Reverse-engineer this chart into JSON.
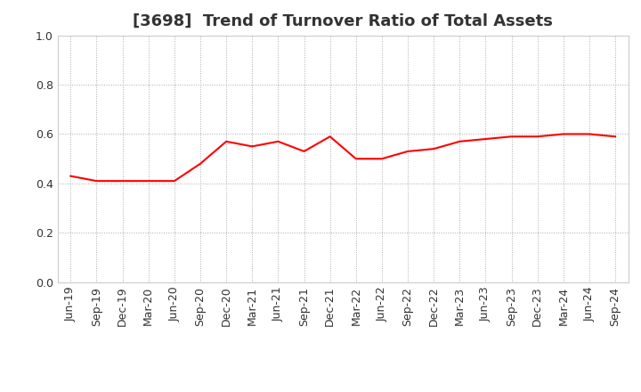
{
  "title": "[3698]  Trend of Turnover Ratio of Total Assets",
  "x_labels": [
    "Jun-19",
    "Sep-19",
    "Dec-19",
    "Mar-20",
    "Jun-20",
    "Sep-20",
    "Dec-20",
    "Mar-21",
    "Jun-21",
    "Sep-21",
    "Dec-21",
    "Mar-22",
    "Jun-22",
    "Sep-22",
    "Dec-22",
    "Mar-23",
    "Jun-23",
    "Sep-23",
    "Dec-23",
    "Mar-24",
    "Jun-24",
    "Sep-24"
  ],
  "values": [
    0.43,
    0.41,
    0.41,
    0.41,
    0.41,
    0.48,
    0.57,
    0.55,
    0.57,
    0.53,
    0.59,
    0.5,
    0.5,
    0.53,
    0.54,
    0.57,
    0.58,
    0.59,
    0.59,
    0.6,
    0.6,
    0.59
  ],
  "line_color": "#ff0000",
  "line_width": 1.5,
  "ylim": [
    0.0,
    1.0
  ],
  "yticks": [
    0.0,
    0.2,
    0.4,
    0.6,
    0.8,
    1.0
  ],
  "ytick_labels": [
    "0.0",
    "0.2",
    "0.4",
    "0.6",
    "0.8",
    "1.0"
  ],
  "background_color": "#ffffff",
  "grid_color": "#aaaaaa",
  "title_fontsize": 13,
  "tick_fontsize": 9,
  "title_color": "#333333"
}
